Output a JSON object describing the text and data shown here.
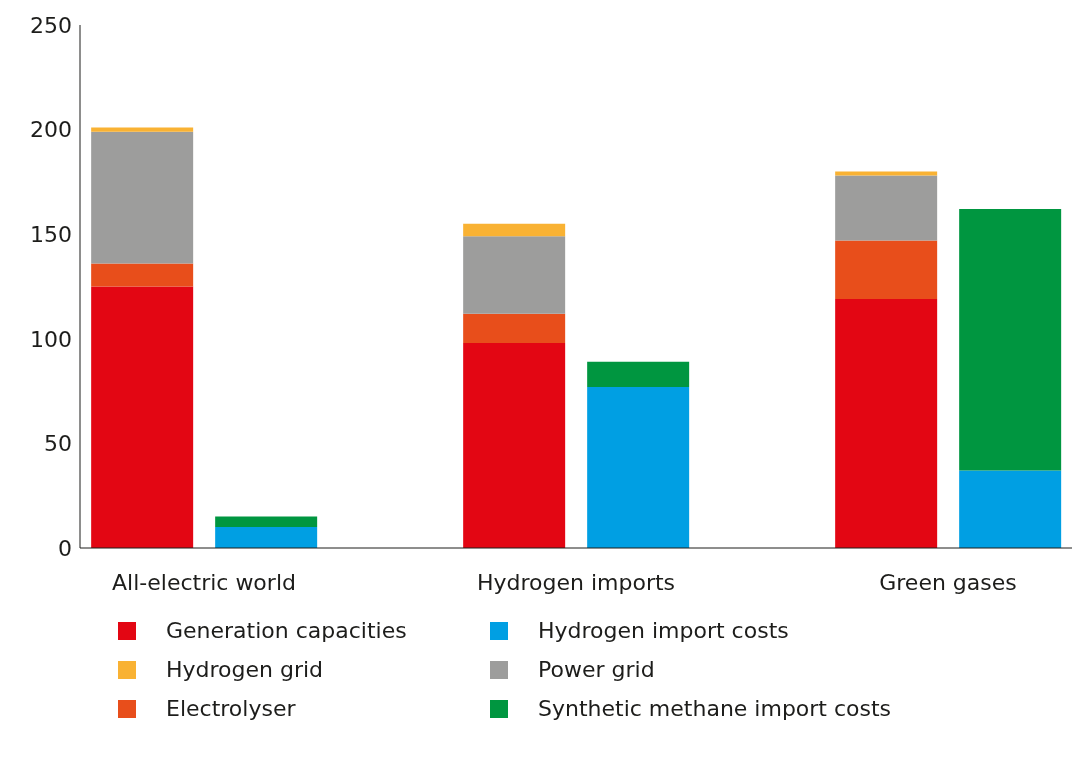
{
  "chart_data": {
    "type": "bar",
    "stacked": true,
    "categories": [
      "All-electric world",
      null,
      null,
      "Hydrogen imports",
      null,
      null,
      "Green gases",
      null
    ],
    "series": [
      {
        "name": "Generation capacities",
        "color": "#e30613",
        "values": [
          125,
          null,
          null,
          98,
          null,
          null,
          119,
          null
        ]
      },
      {
        "name": "Electrolyser",
        "color": "#e84e1b",
        "values": [
          11,
          null,
          null,
          14,
          null,
          null,
          28,
          null
        ]
      },
      {
        "name": "Power grid",
        "color": "#9d9d9c",
        "values": [
          63,
          null,
          null,
          37,
          null,
          null,
          31,
          null
        ]
      },
      {
        "name": "Hydrogen grid",
        "color": "#f9b233",
        "values": [
          2,
          null,
          null,
          6,
          null,
          null,
          2,
          null
        ]
      },
      {
        "name": "Hydrogen import costs",
        "color": "#009fe3",
        "values": [
          null,
          10,
          null,
          null,
          77,
          null,
          null,
          37
        ]
      },
      {
        "name": "Synthetic methane import costs",
        "color": "#009640",
        "values": [
          null,
          5,
          null,
          null,
          12,
          null,
          null,
          125
        ]
      }
    ],
    "ylim": [
      0,
      250
    ],
    "yticks": [
      0,
      50,
      100,
      150,
      200,
      250
    ],
    "grid": false,
    "legend": "bottom"
  }
}
